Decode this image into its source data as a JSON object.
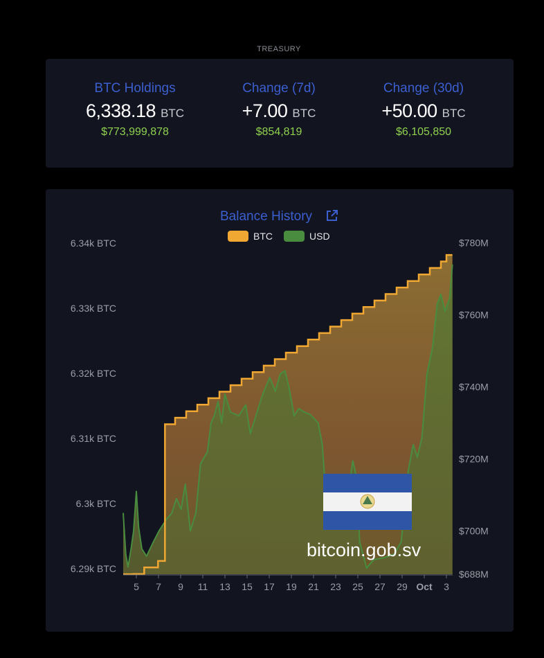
{
  "section_label": "TREASURY",
  "stats": [
    {
      "title": "BTC Holdings",
      "value": "6,338.18",
      "unit": "BTC",
      "usd": "$773,999,878"
    },
    {
      "title": "Change (7d)",
      "value": "+7.00",
      "unit": "BTC",
      "usd": "$854,819"
    },
    {
      "title": "Change (30d)",
      "value": "+50.00",
      "unit": "BTC",
      "usd": "$6,105,850"
    }
  ],
  "watermark": {
    "text": "bitcoin.gob.sv",
    "flag": "el-salvador-flag"
  },
  "colors": {
    "btc": "#f0a832",
    "usd": "#4a8c3f",
    "title": "#3c5fd0",
    "usd_text": "#8fd14f",
    "card": "#12141f"
  },
  "chart_data": {
    "type": "area",
    "title": "Balance History",
    "title_icon": "external-link-icon",
    "legend": [
      "BTC",
      "USD"
    ],
    "legend_placement": "top",
    "grid": false,
    "x_range": [
      "2024-09-03T19:00",
      "2024-10-03T13:00"
    ],
    "x_ticks": [
      "5",
      "7",
      "9",
      "11",
      "13",
      "15",
      "17",
      "19",
      "21",
      "23",
      "25",
      "27",
      "29",
      "Oct",
      "3"
    ],
    "x_tick_dates": [
      "2024-09-05",
      "2024-09-07",
      "2024-09-09",
      "2024-09-11",
      "2024-09-13",
      "2024-09-15",
      "2024-09-17",
      "2024-09-19",
      "2024-09-21",
      "2024-09-23",
      "2024-09-25",
      "2024-09-27",
      "2024-09-29",
      "2024-10-01",
      "2024-10-03"
    ],
    "y_left": {
      "ticks": [
        "6.29k BTC",
        "6.3k BTC",
        "6.31k BTC",
        "6.32k BTC",
        "6.33k BTC",
        "6.34k BTC"
      ],
      "tick_values": [
        6290,
        6300,
        6310,
        6320,
        6330,
        6340
      ],
      "range": [
        6289.1,
        6340
      ]
    },
    "y_right": {
      "ticks": [
        "$688M",
        "$700M",
        "$720M",
        "$740M",
        "$760M",
        "$780M"
      ],
      "tick_values": [
        688,
        700,
        720,
        740,
        760,
        780
      ],
      "range": [
        688,
        780
      ]
    },
    "series": [
      {
        "name": "BTC",
        "axis": "left",
        "step": true,
        "points": [
          [
            "2024-09-03T19:00",
            6288.18
          ],
          [
            "2024-09-04T17:00",
            6289.18
          ],
          [
            "2024-09-05T17:00",
            6290.18
          ],
          [
            "2024-09-06T23:00",
            6291.18
          ],
          [
            "2024-09-07T14:00",
            6312.18
          ],
          [
            "2024-09-08T12:00",
            6313.18
          ],
          [
            "2024-09-09T12:00",
            6314.18
          ],
          [
            "2024-09-10T12:00",
            6315.18
          ],
          [
            "2024-09-11T12:00",
            6316.18
          ],
          [
            "2024-09-12T12:00",
            6317.18
          ],
          [
            "2024-09-13T12:00",
            6318.18
          ],
          [
            "2024-09-14T12:00",
            6319.18
          ],
          [
            "2024-09-15T12:00",
            6320.18
          ],
          [
            "2024-09-16T12:00",
            6321.18
          ],
          [
            "2024-09-17T12:00",
            6322.18
          ],
          [
            "2024-09-18T12:00",
            6323.18
          ],
          [
            "2024-09-19T12:00",
            6324.18
          ],
          [
            "2024-09-20T12:00",
            6325.18
          ],
          [
            "2024-09-21T12:00",
            6326.18
          ],
          [
            "2024-09-22T12:00",
            6327.18
          ],
          [
            "2024-09-23T12:00",
            6328.18
          ],
          [
            "2024-09-24T12:00",
            6329.18
          ],
          [
            "2024-09-25T12:00",
            6330.18
          ],
          [
            "2024-09-26T12:00",
            6331.18
          ],
          [
            "2024-09-27T12:00",
            6332.18
          ],
          [
            "2024-09-28T12:00",
            6333.18
          ],
          [
            "2024-09-29T12:00",
            6334.18
          ],
          [
            "2024-09-30T12:00",
            6335.18
          ],
          [
            "2024-10-01T12:00",
            6336.18
          ],
          [
            "2024-10-02T12:00",
            6337.18
          ],
          [
            "2024-10-03T00:00",
            6338.18
          ],
          [
            "2024-10-03T13:00",
            6338.18
          ]
        ]
      },
      {
        "name": "USD",
        "axis": "right",
        "unit": "$M",
        "points": [
          [
            "2024-09-03T19:00",
            705
          ],
          [
            "2024-09-04T01:00",
            693.6
          ],
          [
            "2024-09-04T06:00",
            690
          ],
          [
            "2024-09-04T13:00",
            695.5
          ],
          [
            "2024-09-04T18:00",
            700
          ],
          [
            "2024-09-05T00:00",
            711
          ],
          [
            "2024-09-05T05:00",
            701
          ],
          [
            "2024-09-05T12:00",
            695
          ],
          [
            "2024-09-05T22:00",
            693
          ],
          [
            "2024-09-06T13:00",
            697
          ],
          [
            "2024-09-07T01:00",
            700
          ],
          [
            "2024-09-07T16:00",
            703
          ],
          [
            "2024-09-08T05:00",
            705
          ],
          [
            "2024-09-08T15:00",
            709
          ],
          [
            "2024-09-09T01:00",
            706
          ],
          [
            "2024-09-09T10:00",
            713
          ],
          [
            "2024-09-09T21:00",
            700
          ],
          [
            "2024-09-10T09:00",
            705
          ],
          [
            "2024-09-10T19:00",
            718.6
          ],
          [
            "2024-09-11T10:00",
            722
          ],
          [
            "2024-09-11T18:00",
            730
          ],
          [
            "2024-09-12T01:00",
            732
          ],
          [
            "2024-09-12T09:00",
            736
          ],
          [
            "2024-09-12T17:00",
            730
          ],
          [
            "2024-09-13T00:00",
            738
          ],
          [
            "2024-09-13T12:00",
            733
          ],
          [
            "2024-09-14T06:00",
            732
          ],
          [
            "2024-09-14T21:00",
            735
          ],
          [
            "2024-09-15T07:00",
            727
          ],
          [
            "2024-09-15T19:00",
            732
          ],
          [
            "2024-09-16T10:00",
            738
          ],
          [
            "2024-09-17T01:00",
            742.6
          ],
          [
            "2024-09-17T13:00",
            738.8
          ],
          [
            "2024-09-18T00:00",
            743.6
          ],
          [
            "2024-09-18T10:00",
            744.5
          ],
          [
            "2024-09-18T19:00",
            739.7
          ],
          [
            "2024-09-19T06:00",
            732
          ],
          [
            "2024-09-19T16:00",
            734
          ],
          [
            "2024-09-20T04:00",
            733
          ],
          [
            "2024-09-20T16:00",
            732.4
          ],
          [
            "2024-09-21T10:00",
            730
          ],
          [
            "2024-09-21T19:00",
            724
          ],
          [
            "2024-09-22T01:00",
            713
          ],
          [
            "2024-09-22T09:00",
            705
          ],
          [
            "2024-09-23T07:00",
            701
          ],
          [
            "2024-09-24T06:00",
            713
          ],
          [
            "2024-09-24T13:00",
            719.5
          ],
          [
            "2024-09-24T21:00",
            715
          ],
          [
            "2024-09-25T04:00",
            697
          ],
          [
            "2024-09-25T19:00",
            689.7
          ],
          [
            "2024-09-26T10:00",
            692
          ],
          [
            "2024-09-27T09:00",
            692.6
          ],
          [
            "2024-09-28T07:00",
            693.6
          ],
          [
            "2024-09-28T22:00",
            697
          ],
          [
            "2024-09-29T13:00",
            716.6
          ],
          [
            "2024-09-30T00:00",
            724
          ],
          [
            "2024-09-30T09:00",
            720.5
          ],
          [
            "2024-09-30T19:00",
            726
          ],
          [
            "2024-10-01T06:00",
            743.6
          ],
          [
            "2024-10-01T18:00",
            751
          ],
          [
            "2024-10-02T04:00",
            763
          ],
          [
            "2024-10-02T12:00",
            765.7
          ],
          [
            "2024-10-02T21:00",
            761
          ],
          [
            "2024-10-03T07:00",
            764.7
          ],
          [
            "2024-10-03T13:00",
            774
          ]
        ]
      }
    ]
  }
}
